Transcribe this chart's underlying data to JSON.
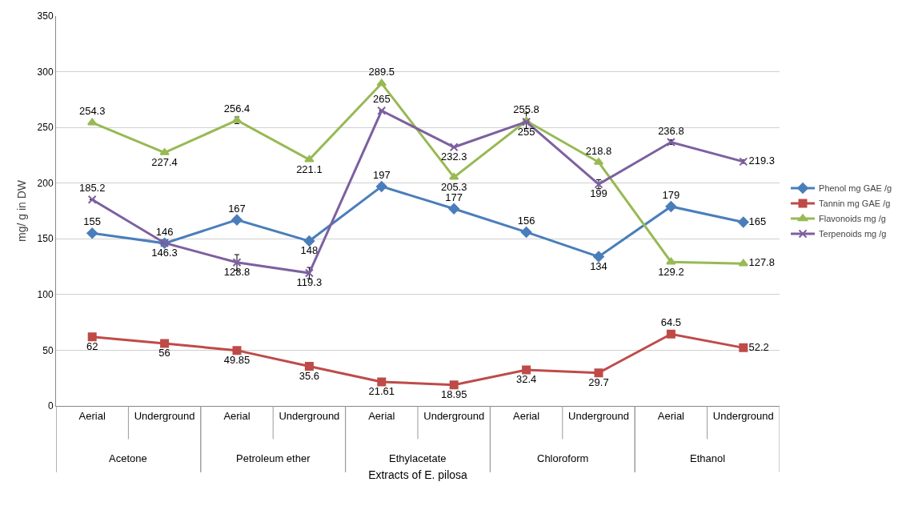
{
  "chart_data": {
    "type": "line",
    "xlabel": "Extracts of E. pilosa",
    "ylabel": "mg/ g in DW",
    "categories": [
      "Aerial",
      "Underground",
      "Aerial",
      "Underground",
      "Aerial",
      "Underground",
      "Aerial",
      "Underground",
      "Aerial",
      "Underground"
    ],
    "annotations": [
      "Acetone",
      "Petroleum ether",
      "Ethylacetate",
      "Chloroform",
      "Ethanol"
    ],
    "series": [
      {
        "name": "Phenol mg GAE /g",
        "color": "#4a7ebb",
        "marker": "diamond",
        "values": [
          155,
          146,
          167,
          148,
          197,
          177,
          156,
          134,
          179,
          165
        ]
      },
      {
        "name": "Tannin mg GAE /g",
        "color": "#be4b48",
        "marker": "square",
        "values": [
          62,
          56,
          49.85,
          35.6,
          21.61,
          18.95,
          32.4,
          29.7,
          64.5,
          52.2
        ]
      },
      {
        "name": "Flavonoids mg /g",
        "color": "#98b954",
        "marker": "triangle",
        "values": [
          254.3,
          227.4,
          256.4,
          221.1,
          289.5,
          205.3,
          255.8,
          218.8,
          129.2,
          127.8
        ],
        "errors": [
          null,
          null,
          3,
          null,
          null,
          null,
          7,
          null,
          null,
          null
        ]
      },
      {
        "name": "Terpenoids mg /g",
        "color": "#7d60a0",
        "marker": "cross",
        "values": [
          185.2,
          146.3,
          128.8,
          119.3,
          265,
          232.3,
          255,
          199,
          236.8,
          219.3
        ],
        "errors": [
          null,
          null,
          7,
          5,
          null,
          null,
          null,
          4,
          2,
          1.5
        ]
      }
    ],
    "ylim": [
      0,
      350
    ],
    "yticks": [
      0,
      50,
      100,
      150,
      200,
      250,
      300,
      350
    ],
    "grid": "y",
    "legend": "right",
    "data_labels": true,
    "line_style": "solid"
  }
}
